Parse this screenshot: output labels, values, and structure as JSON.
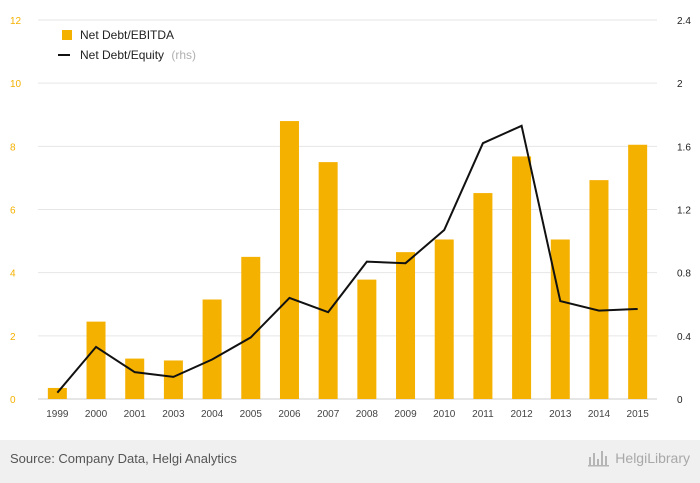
{
  "chart_data": {
    "type": "bar+line",
    "categories": [
      "1999",
      "2000",
      "2001",
      "2003",
      "2004",
      "2005",
      "2006",
      "2007",
      "2008",
      "2009",
      "2010",
      "2011",
      "2012",
      "2013",
      "2014",
      "2015"
    ],
    "series": [
      {
        "name": "Net Debt/EBITDA",
        "type": "bar",
        "axis": "left",
        "color": "#f5b100",
        "values": [
          0.35,
          2.45,
          1.28,
          1.22,
          3.15,
          4.5,
          8.8,
          7.5,
          3.78,
          4.65,
          5.05,
          6.52,
          7.68,
          5.05,
          6.93,
          8.05
        ]
      },
      {
        "name": "Net Debt/Equity",
        "name_note": "(rhs)",
        "type": "line",
        "axis": "right",
        "color": "#111111",
        "values": [
          0.04,
          0.33,
          0.17,
          0.14,
          0.25,
          0.39,
          0.64,
          0.55,
          0.87,
          0.86,
          1.07,
          1.62,
          1.73,
          0.62,
          0.56,
          0.57
        ]
      }
    ],
    "y_left": {
      "min": 0,
      "max": 12,
      "ticks": [
        "0",
        "2",
        "4",
        "6",
        "8",
        "10",
        "12"
      ]
    },
    "y_right": {
      "min": 0,
      "max": 2.4,
      "ticks": [
        "0",
        "0.4",
        "0.8",
        "1.2",
        "1.6",
        "2",
        "2.4"
      ]
    },
    "grid": true,
    "legend_position": "top-left"
  },
  "footer": {
    "source": "Source: Company Data, Helgi Analytics",
    "logo_text": "HelgiLibrary"
  },
  "colors": {
    "bar": "#f5b100",
    "line": "#111111",
    "grid": "#e6e6e6",
    "footer_bg": "#f0f0f0"
  }
}
